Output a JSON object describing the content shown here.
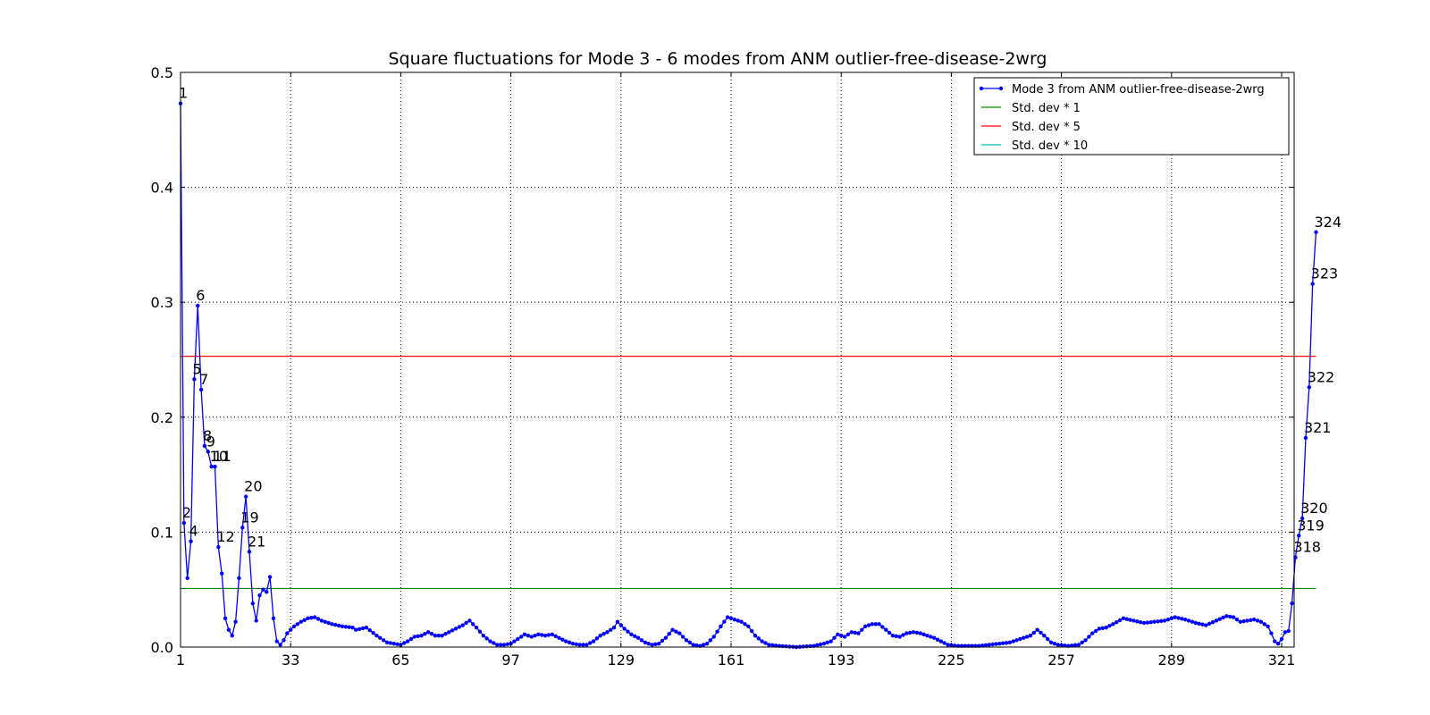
{
  "chart_data": {
    "type": "line",
    "title": "Square fluctuations for Mode 3 - 6 modes from ANM outlier-free-disease-2wrg",
    "xlabel": "",
    "ylabel": "",
    "xlim": [
      1,
      325
    ],
    "ylim": [
      0,
      0.5
    ],
    "x_ticks": [
      1,
      33,
      65,
      97,
      129,
      161,
      193,
      225,
      257,
      289,
      321
    ],
    "y_ticks": [
      0.0,
      0.1,
      0.2,
      0.3,
      0.4,
      0.5
    ],
    "y_tick_labels": [
      "0.0",
      "0.1",
      "0.2",
      "0.3",
      "0.4",
      "0.5"
    ],
    "grid": true,
    "legend_position": "top-right",
    "series": [
      {
        "name": "Mode 3 from ANM outlier-free-disease-2wrg",
        "color": "#0000ff",
        "marker": "dot",
        "anchors": [
          [
            1,
            0.473
          ],
          [
            2,
            0.108
          ],
          [
            3,
            0.06
          ],
          [
            4,
            0.092
          ],
          [
            5,
            0.233
          ],
          [
            6,
            0.297
          ],
          [
            7,
            0.224
          ],
          [
            8,
            0.175
          ],
          [
            9,
            0.17
          ],
          [
            10,
            0.157
          ],
          [
            11,
            0.157
          ],
          [
            12,
            0.087
          ],
          [
            13,
            0.064
          ],
          [
            14,
            0.025
          ],
          [
            15,
            0.015
          ],
          [
            16,
            0.01
          ],
          [
            17,
            0.022
          ],
          [
            18,
            0.06
          ],
          [
            19,
            0.104
          ],
          [
            20,
            0.131
          ],
          [
            21,
            0.083
          ],
          [
            22,
            0.038
          ],
          [
            23,
            0.023
          ],
          [
            24,
            0.045
          ],
          [
            25,
            0.05
          ],
          [
            26,
            0.048
          ],
          [
            27,
            0.061
          ],
          [
            28,
            0.025
          ],
          [
            29,
            0.005
          ],
          [
            30,
            0.002
          ],
          [
            31,
            0.006
          ],
          [
            32,
            0.012
          ],
          [
            34,
            0.018
          ],
          [
            36,
            0.022
          ],
          [
            38,
            0.025
          ],
          [
            40,
            0.026
          ],
          [
            42,
            0.023
          ],
          [
            45,
            0.02
          ],
          [
            48,
            0.018
          ],
          [
            51,
            0.017
          ],
          [
            52,
            0.015
          ],
          [
            55,
            0.017
          ],
          [
            58,
            0.01
          ],
          [
            61,
            0.004
          ],
          [
            63,
            0.003
          ],
          [
            65,
            0.002
          ],
          [
            67,
            0.005
          ],
          [
            69,
            0.009
          ],
          [
            71,
            0.01
          ],
          [
            73,
            0.013
          ],
          [
            75,
            0.01
          ],
          [
            77,
            0.01
          ],
          [
            79,
            0.013
          ],
          [
            81,
            0.016
          ],
          [
            83,
            0.019
          ],
          [
            85,
            0.023
          ],
          [
            87,
            0.017
          ],
          [
            89,
            0.01
          ],
          [
            91,
            0.005
          ],
          [
            93,
            0.002
          ],
          [
            95,
            0.002
          ],
          [
            97,
            0.003
          ],
          [
            99,
            0.007
          ],
          [
            101,
            0.011
          ],
          [
            103,
            0.009
          ],
          [
            105,
            0.011
          ],
          [
            107,
            0.01
          ],
          [
            109,
            0.011
          ],
          [
            111,
            0.008
          ],
          [
            113,
            0.005
          ],
          [
            115,
            0.003
          ],
          [
            117,
            0.002
          ],
          [
            119,
            0.002
          ],
          [
            121,
            0.005
          ],
          [
            123,
            0.01
          ],
          [
            125,
            0.013
          ],
          [
            127,
            0.017
          ],
          [
            128,
            0.022
          ],
          [
            130,
            0.016
          ],
          [
            132,
            0.011
          ],
          [
            134,
            0.008
          ],
          [
            136,
            0.004
          ],
          [
            138,
            0.002
          ],
          [
            140,
            0.003
          ],
          [
            142,
            0.008
          ],
          [
            144,
            0.015
          ],
          [
            146,
            0.012
          ],
          [
            148,
            0.006
          ],
          [
            150,
            0.002
          ],
          [
            152,
            0.001
          ],
          [
            154,
            0.003
          ],
          [
            156,
            0.009
          ],
          [
            158,
            0.018
          ],
          [
            160,
            0.026
          ],
          [
            162,
            0.024
          ],
          [
            164,
            0.022
          ],
          [
            166,
            0.018
          ],
          [
            168,
            0.01
          ],
          [
            170,
            0.005
          ],
          [
            172,
            0.002
          ],
          [
            175,
            0.001
          ],
          [
            180,
            0.0
          ],
          [
            185,
            0.001
          ],
          [
            188,
            0.003
          ],
          [
            190,
            0.005
          ],
          [
            192,
            0.011
          ],
          [
            194,
            0.009
          ],
          [
            196,
            0.013
          ],
          [
            198,
            0.012
          ],
          [
            200,
            0.018
          ],
          [
            202,
            0.02
          ],
          [
            204,
            0.02
          ],
          [
            206,
            0.015
          ],
          [
            208,
            0.01
          ],
          [
            210,
            0.009
          ],
          [
            212,
            0.012
          ],
          [
            214,
            0.013
          ],
          [
            216,
            0.012
          ],
          [
            218,
            0.01
          ],
          [
            220,
            0.008
          ],
          [
            222,
            0.005
          ],
          [
            224,
            0.002
          ],
          [
            227,
            0.001
          ],
          [
            230,
            0.001
          ],
          [
            233,
            0.001
          ],
          [
            236,
            0.002
          ],
          [
            239,
            0.003
          ],
          [
            242,
            0.004
          ],
          [
            245,
            0.007
          ],
          [
            248,
            0.01
          ],
          [
            250,
            0.015
          ],
          [
            252,
            0.01
          ],
          [
            254,
            0.004
          ],
          [
            256,
            0.002
          ],
          [
            259,
            0.001
          ],
          [
            262,
            0.002
          ],
          [
            264,
            0.006
          ],
          [
            266,
            0.012
          ],
          [
            268,
            0.016
          ],
          [
            270,
            0.017
          ],
          [
            272,
            0.02
          ],
          [
            275,
            0.025
          ],
          [
            278,
            0.023
          ],
          [
            281,
            0.021
          ],
          [
            284,
            0.022
          ],
          [
            287,
            0.023
          ],
          [
            290,
            0.026
          ],
          [
            293,
            0.024
          ],
          [
            296,
            0.021
          ],
          [
            299,
            0.019
          ],
          [
            302,
            0.023
          ],
          [
            305,
            0.027
          ],
          [
            307,
            0.026
          ],
          [
            309,
            0.022
          ],
          [
            311,
            0.023
          ],
          [
            313,
            0.024
          ],
          [
            315,
            0.022
          ],
          [
            317,
            0.018
          ],
          [
            318,
            0.012
          ],
          [
            319,
            0.005
          ],
          [
            320,
            0.003
          ],
          [
            321,
            0.007
          ],
          [
            322,
            0.013
          ],
          [
            323,
            0.014
          ],
          [
            324,
            0.038
          ],
          [
            325,
            0.078
          ],
          [
            326,
            0.097
          ],
          [
            327,
            0.112
          ],
          [
            328,
            0.182
          ],
          [
            329,
            0.226
          ],
          [
            330,
            0.316
          ],
          [
            331,
            0.361
          ]
        ]
      },
      {
        "name": "Std. dev * 1",
        "color": "#008000",
        "value": 0.051
      },
      {
        "name": "Std. dev * 5",
        "color": "#ff0000",
        "value": 0.253
      },
      {
        "name": "Std. dev * 10",
        "color": "#00bfbf",
        "value": null
      }
    ],
    "annotations": [
      {
        "text": "1",
        "x": 1,
        "y": 0.473
      },
      {
        "text": "2",
        "x": 2,
        "y": 0.108
      },
      {
        "text": "4",
        "x": 4,
        "y": 0.092
      },
      {
        "text": "5",
        "x": 5,
        "y": 0.233
      },
      {
        "text": "6",
        "x": 6,
        "y": 0.297
      },
      {
        "text": "7",
        "x": 7,
        "y": 0.224
      },
      {
        "text": "8",
        "x": 8,
        "y": 0.175
      },
      {
        "text": "9",
        "x": 9,
        "y": 0.17
      },
      {
        "text": "10",
        "x": 10,
        "y": 0.157
      },
      {
        "text": "11",
        "x": 11,
        "y": 0.157
      },
      {
        "text": "12",
        "x": 12,
        "y": 0.087
      },
      {
        "text": "19",
        "x": 19,
        "y": 0.104
      },
      {
        "text": "20",
        "x": 20,
        "y": 0.131
      },
      {
        "text": "21",
        "x": 21,
        "y": 0.083
      },
      {
        "text": "318",
        "x": 325,
        "y": 0.078
      },
      {
        "text": "319",
        "x": 326,
        "y": 0.097
      },
      {
        "text": "320",
        "x": 327,
        "y": 0.112
      },
      {
        "text": "321",
        "x": 328,
        "y": 0.182
      },
      {
        "text": "322",
        "x": 329,
        "y": 0.226
      },
      {
        "text": "323",
        "x": 330,
        "y": 0.316
      },
      {
        "text": "324",
        "x": 331,
        "y": 0.361
      }
    ]
  }
}
